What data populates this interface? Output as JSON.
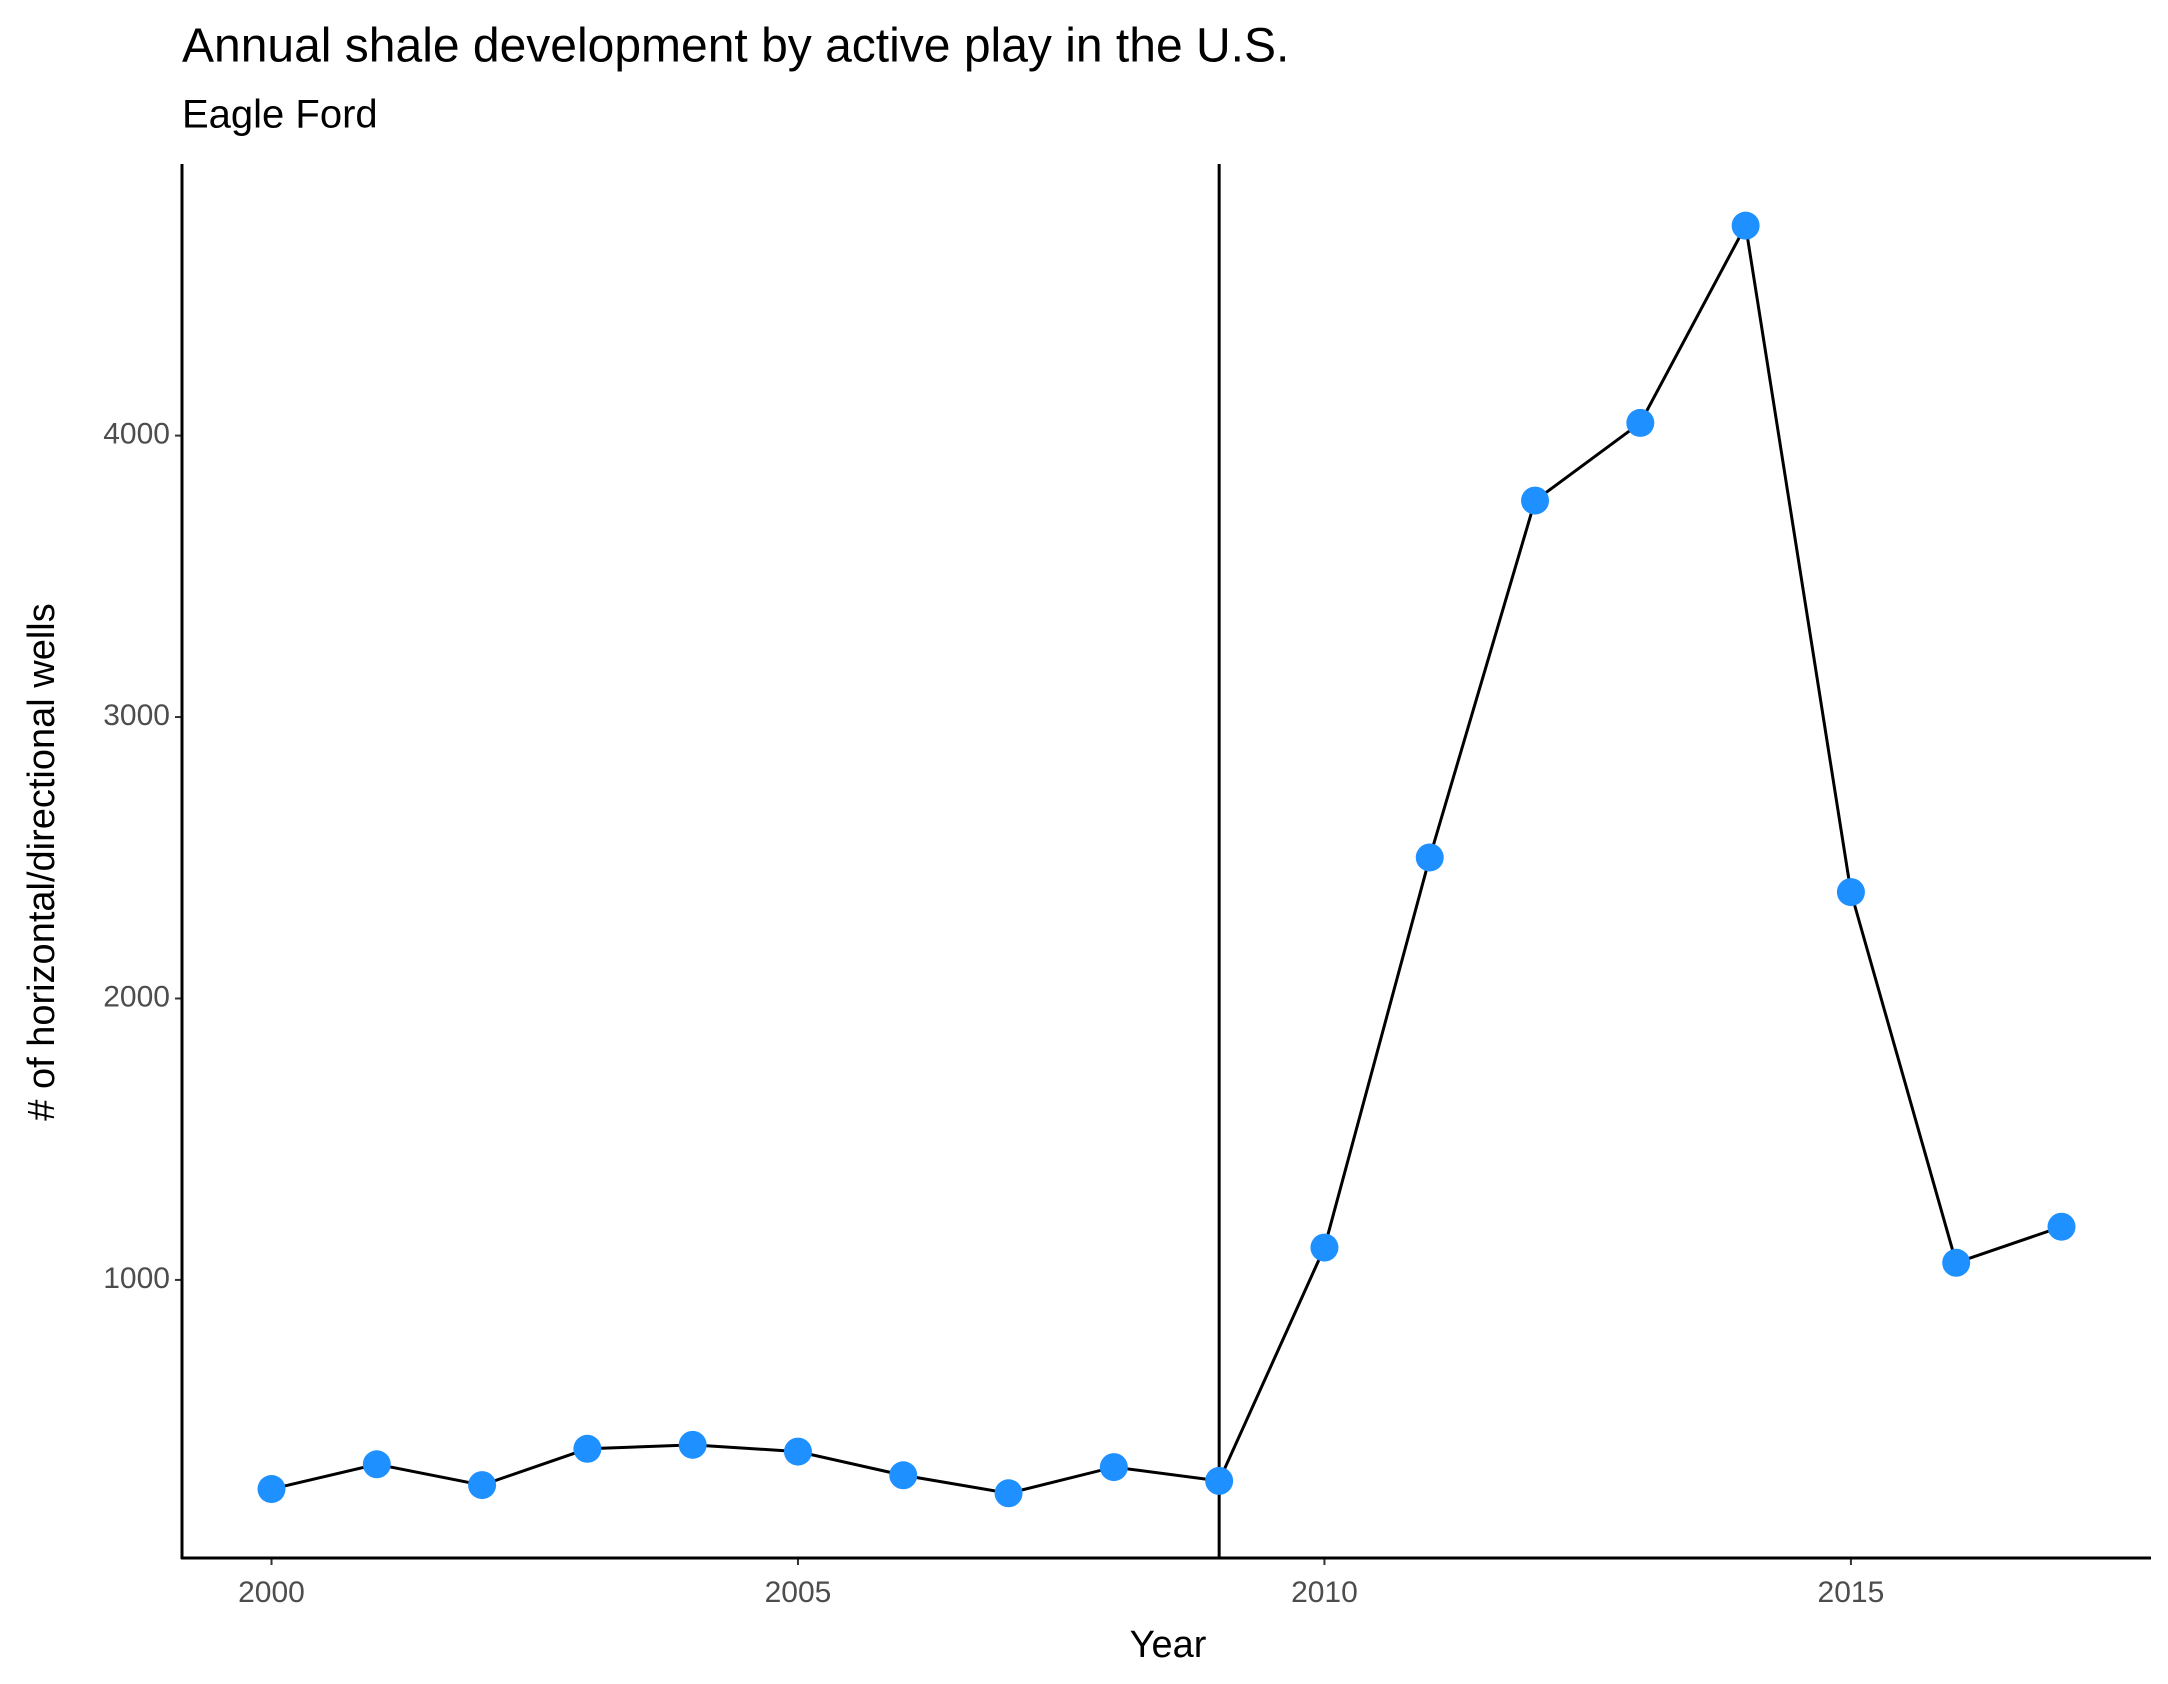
{
  "chart_data": {
    "type": "line",
    "title": "Annual shale development by active play in the U.S.",
    "subtitle": "Eagle Ford",
    "x_label": "Year",
    "y_label": "# of horizontal/directional wells",
    "x": [
      2000,
      2001,
      2002,
      2003,
      2004,
      2005,
      2006,
      2007,
      2008,
      2009,
      2010,
      2011,
      2012,
      2013,
      2014,
      2015,
      2016,
      2017
    ],
    "series": [
      {
        "color": "#1e90ff",
        "line_color": "#000000",
        "values": [
          257,
          345,
          271,
          400,
          414,
          390,
          306,
          242,
          335,
          286,
          1115,
          2501,
          3769,
          4045,
          4746,
          2378,
          1061,
          1189
        ]
      }
    ],
    "vline": 2009,
    "xlim": [
      1999.15,
      2017.85
    ],
    "xticks": [
      2000,
      2005,
      2010,
      2015
    ],
    "ylim": [
      12,
      4965
    ],
    "yticks": [
      1000,
      2000,
      3000,
      4000
    ],
    "grid": false
  }
}
